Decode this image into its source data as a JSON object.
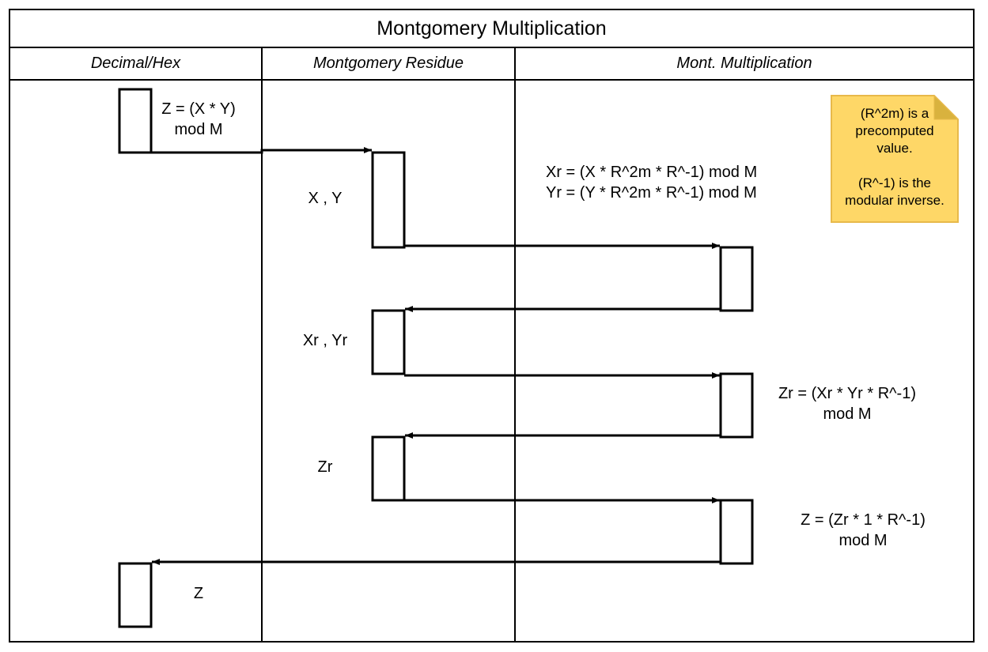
{
  "title": "Montgomery Multiplication",
  "lanes": [
    {
      "label": "Decimal/Hex"
    },
    {
      "label": "Montgomery Residue"
    },
    {
      "label": "Mont. Multiplication"
    }
  ],
  "labels": {
    "z_formula_line1": "Z = (X * Y)",
    "z_formula_line2": "mod M",
    "xy": "X , Y",
    "xr_formula": "Xr = (X * R^2m * R^-1) mod M",
    "yr_formula": "Yr = (Y * R^2m * R^-1) mod M",
    "xr_yr": "Xr , Yr",
    "zr_formula_line1": "Zr = (Xr * Yr * R^-1)",
    "zr_formula_line2": "mod M",
    "zr": "Zr",
    "z_final_formula_line1": "Z = (Zr * 1 * R^-1)",
    "z_final_formula_line2": "mod M",
    "z": "Z"
  },
  "note": {
    "line1": "(R^2m) is a",
    "line2": "precomputed",
    "line3": "value.",
    "line4": "",
    "line5": "(R^-1) is the",
    "line6": "modular inverse.",
    "fill_color": "#fed767",
    "border_color": "#e8b94a"
  },
  "colors": {
    "line": "#000000",
    "background": "#ffffff"
  }
}
